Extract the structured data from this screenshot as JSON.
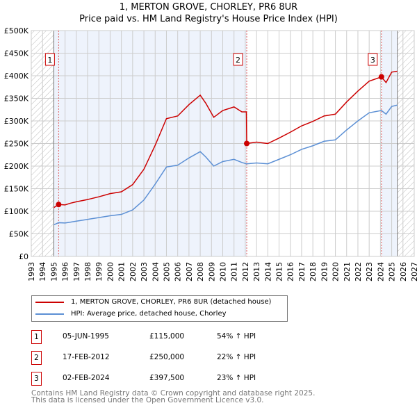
{
  "chart_data": {
    "type": "line",
    "title": "1, MERTON GROVE, CHORLEY, PR6 8UR",
    "subtitle": "Price paid vs. HM Land Registry's House Price Index (HPI)",
    "xlim": [
      1993,
      2027
    ],
    "ylim": [
      0,
      500000
    ],
    "x_ticks": [
      "1993",
      "1994",
      "1995",
      "1996",
      "1997",
      "1998",
      "1999",
      "2000",
      "2001",
      "2002",
      "2003",
      "2004",
      "2005",
      "2006",
      "2007",
      "2008",
      "2009",
      "2010",
      "2011",
      "2012",
      "2013",
      "2014",
      "2015",
      "2016",
      "2017",
      "2018",
      "2019",
      "2020",
      "2021",
      "2022",
      "2023",
      "2024",
      "2025",
      "2026",
      "2027"
    ],
    "y_ticks": [
      {
        "v": 0,
        "label": "£0"
      },
      {
        "v": 50000,
        "label": "£50K"
      },
      {
        "v": 100000,
        "label": "£100K"
      },
      {
        "v": 150000,
        "label": "£150K"
      },
      {
        "v": 200000,
        "label": "£200K"
      },
      {
        "v": 250000,
        "label": "£250K"
      },
      {
        "v": 300000,
        "label": "£300K"
      },
      {
        "v": 350000,
        "label": "£350K"
      },
      {
        "v": 400000,
        "label": "£400K"
      },
      {
        "v": 450000,
        "label": "£450K"
      },
      {
        "v": 500000,
        "label": "£500K"
      }
    ],
    "data_range": [
      1995,
      2025.5
    ],
    "series": [
      {
        "name": "1, MERTON GROVE, CHORLEY, PR6 8UR (detached house)",
        "color": "#cc0000",
        "x": [
          1995,
          1995.43,
          1996,
          1996.5,
          1997,
          1998,
          1999,
          2000,
          2001,
          2002,
          2003,
          2004,
          2005,
          2006,
          2007,
          2008,
          2008.5,
          2009.2,
          2010,
          2011,
          2011.7,
          2012.1,
          2012.13,
          2013,
          2014,
          2015,
          2016,
          2017,
          2018,
          2019,
          2020,
          2021,
          2022,
          2023,
          2024.09,
          2024.5,
          2025,
          2025.5
        ],
        "y": [
          108000,
          115000,
          114000,
          118000,
          121000,
          126000,
          132000,
          139000,
          143000,
          159000,
          193000,
          246000,
          305000,
          311000,
          336000,
          357000,
          339000,
          308000,
          323000,
          331000,
          320000,
          320000,
          250000,
          253000,
          250000,
          262000,
          275000,
          289000,
          299000,
          311000,
          315000,
          342000,
          366000,
          388000,
          397500,
          385000,
          408000,
          410000
        ]
      },
      {
        "name": "HPI: Average price, detached house, Chorley",
        "color": "#5b8fd4",
        "x": [
          1995,
          1995.43,
          1996,
          1996.5,
          1997,
          1998,
          1999,
          2000,
          2001,
          2002,
          2003,
          2004,
          2005,
          2006,
          2007,
          2008,
          2008.5,
          2009.2,
          2010,
          2011,
          2011.7,
          2012.1,
          2012.13,
          2013,
          2014,
          2015,
          2016,
          2017,
          2018,
          2019,
          2020,
          2021,
          2022,
          2023,
          2024.09,
          2024.5,
          2025,
          2025.5
        ],
        "y": [
          70000,
          74700,
          74000,
          76000,
          78000,
          82000,
          86000,
          90000,
          93000,
          103000,
          125000,
          160000,
          198000,
          202000,
          218000,
          232000,
          220000,
          200000,
          210000,
          215000,
          208000,
          205000,
          205000,
          207000,
          205000,
          215000,
          225000,
          237000,
          245000,
          255000,
          258000,
          280000,
          300000,
          318000,
          323000,
          315000,
          332000,
          335000
        ]
      }
    ],
    "sales": [
      {
        "n": "1",
        "x": 1995.43,
        "y": 115000,
        "date": "05-JUN-1995",
        "price": "£115,000",
        "hpi": "54% ↑ HPI"
      },
      {
        "n": "2",
        "x": 2012.13,
        "y": 250000,
        "date": "17-FEB-2012",
        "price": "£250,000",
        "hpi": "22% ↑ HPI"
      },
      {
        "n": "3",
        "x": 2024.09,
        "y": 397500,
        "date": "02-FEB-2024",
        "price": "£397,500",
        "hpi": "23% ↑ HPI"
      }
    ]
  },
  "footer": {
    "line1": "Contains HM Land Registry data © Crown copyright and database right 2025.",
    "line2": "This data is licensed under the Open Government Licence v3.0."
  }
}
